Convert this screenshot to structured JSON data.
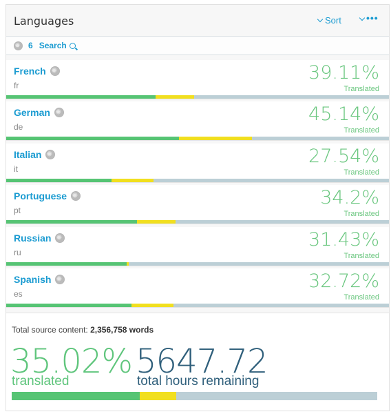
{
  "header": {
    "title": "Languages",
    "sort_label": "Sort",
    "more_label": "•••"
  },
  "toolbar": {
    "language_count": "6",
    "search_label": "Search"
  },
  "languages": [
    {
      "name": "French",
      "code": "fr",
      "percent": "39.11%",
      "status": "Translated",
      "translated_frac": 0.3911,
      "review_frac": 0.1
    },
    {
      "name": "German",
      "code": "de",
      "percent": "45.14%",
      "status": "Translated",
      "translated_frac": 0.4514,
      "review_frac": 0.19
    },
    {
      "name": "Italian",
      "code": "it",
      "percent": "27.54%",
      "status": "Translated",
      "translated_frac": 0.2754,
      "review_frac": 0.11
    },
    {
      "name": "Portuguese",
      "code": "pt",
      "percent": "34.2%",
      "status": "Translated",
      "translated_frac": 0.342,
      "review_frac": 0.1
    },
    {
      "name": "Russian",
      "code": "ru",
      "percent": "31.43%",
      "status": "Translated",
      "translated_frac": 0.3143,
      "review_frac": 0.005
    },
    {
      "name": "Spanish",
      "code": "es",
      "percent": "32.72%",
      "status": "Translated",
      "translated_frac": 0.3272,
      "review_frac": 0.11
    }
  ],
  "summary": {
    "total_label": "Total source content:",
    "total_words": "2,356,758 words",
    "translated_percent": "35.02%",
    "translated_label": "translated",
    "hours": "5647.72",
    "hours_label": "total hours remaining",
    "translated_frac": 0.3502,
    "review_frac": 0.1
  },
  "colors": {
    "accent": "#1a9bd1",
    "translated": "#56c474",
    "review": "#f1df1f",
    "remaining": "#bccfd6",
    "hours": "#2f5f7b"
  }
}
